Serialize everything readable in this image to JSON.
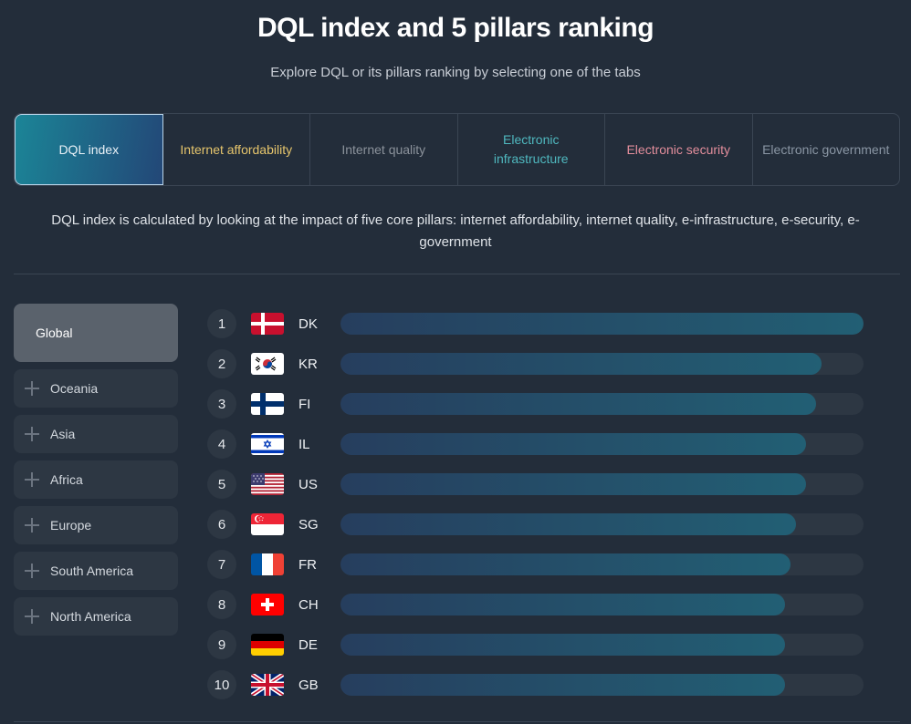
{
  "header": {
    "title": "DQL index and 5 pillars ranking",
    "subtitle": "Explore DQL or its pillars ranking by selecting one of the tabs"
  },
  "tabs": [
    {
      "label": "DQL index",
      "color": "#e9f1f7",
      "active": true
    },
    {
      "label": "Internet affordability",
      "color": "#e6c56c",
      "active": false
    },
    {
      "label": "Internet quality",
      "color": "#8b929b",
      "active": false
    },
    {
      "label": "Electronic infrastructure",
      "color": "#4fb8bf",
      "active": false
    },
    {
      "label": "Electronic security",
      "color": "#e38e9c",
      "active": false
    },
    {
      "label": "Electronic government",
      "color": "#8a96a4",
      "active": false
    }
  ],
  "description": "DQL index is calculated by looking at the impact of five core pillars: internet affordability, internet quality, e-infrastructure, e-security, e-government",
  "regions": [
    {
      "label": "Global",
      "active": true
    },
    {
      "label": "Oceania",
      "active": false
    },
    {
      "label": "Asia",
      "active": false
    },
    {
      "label": "Africa",
      "active": false
    },
    {
      "label": "Europe",
      "active": false
    },
    {
      "label": "South America",
      "active": false
    },
    {
      "label": "North America",
      "active": false
    }
  ],
  "ranking": [
    {
      "rank": "1",
      "code": "DK",
      "flag": "denmark-flag",
      "fill": 1.0
    },
    {
      "rank": "2",
      "code": "KR",
      "flag": "south-korea-flag",
      "fill": 0.92
    },
    {
      "rank": "3",
      "code": "FI",
      "flag": "finland-flag",
      "fill": 0.91
    },
    {
      "rank": "4",
      "code": "IL",
      "flag": "israel-flag",
      "fill": 0.89
    },
    {
      "rank": "5",
      "code": "US",
      "flag": "usa-flag",
      "fill": 0.89
    },
    {
      "rank": "6",
      "code": "SG",
      "flag": "singapore-flag",
      "fill": 0.87
    },
    {
      "rank": "7",
      "code": "FR",
      "flag": "france-flag",
      "fill": 0.86
    },
    {
      "rank": "8",
      "code": "CH",
      "flag": "switzerland-flag",
      "fill": 0.85
    },
    {
      "rank": "9",
      "code": "DE",
      "flag": "germany-flag",
      "fill": 0.85
    },
    {
      "rank": "10",
      "code": "GB",
      "flag": "uk-flag",
      "fill": 0.85
    }
  ]
}
